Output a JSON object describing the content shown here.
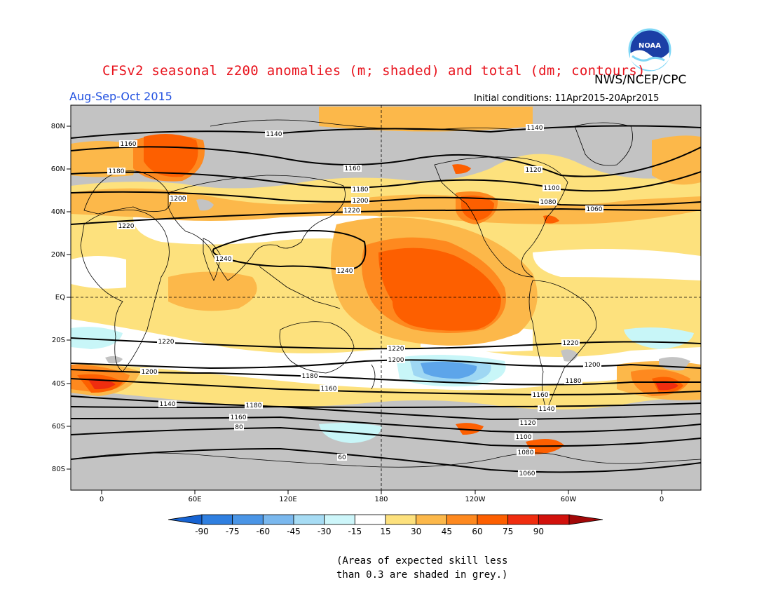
{
  "header": {
    "title": "CFSv2 seasonal z200 anomalies (m; shaded) and total (dm; contours)",
    "agency": "NWS/NCEP/CPC",
    "season": "Aug-Sep-Oct 2015",
    "initial_conditions": "Initial conditions: 11Apr2015-20Apr2015",
    "logo_text": "NOAA"
  },
  "map": {
    "lat_labels": [
      "80N",
      "60N",
      "40N",
      "20N",
      "EQ",
      "20S",
      "40S",
      "60S",
      "80S"
    ],
    "lon_labels": [
      "0",
      "60E",
      "120E",
      "180",
      "120W",
      "60W",
      "0"
    ],
    "colors": {
      "grey": "#c3c3c3",
      "white": "#ffffff",
      "y15": "#fde17d",
      "y30": "#fcb84a",
      "o45": "#fe891f",
      "o60": "#fd5f00",
      "r75": "#f02d0f",
      "lb15": "#c8f6f8",
      "lb30": "#9ed7f3",
      "b45": "#5da5ea"
    },
    "contour_labels": [
      "1140",
      "1160",
      "1180",
      "1200",
      "1220",
      "1240",
      "1240",
      "1220",
      "1200",
      "1180",
      "1160",
      "1140",
      "1120",
      "1100",
      "1080",
      "1060",
      "1140",
      "1160",
      "1180",
      "1200",
      "1220",
      "1220",
      "1200",
      "1180",
      "1160",
      "1140",
      "1120",
      "1100",
      "1080",
      "1060",
      "1220",
      "1200",
      "1180",
      "1160",
      "80",
      "60"
    ]
  },
  "colorbar": {
    "labels": [
      "-90",
      "-75",
      "-60",
      "-45",
      "-30",
      "-15",
      "15",
      "30",
      "45",
      "60",
      "75",
      "90"
    ],
    "colors": [
      "#1663d2",
      "#2f7fe0",
      "#4a95e6",
      "#7ab8ee",
      "#a7dcf4",
      "#cdf6fa",
      "#ffffff",
      "#fde17d",
      "#fcb84a",
      "#fe891f",
      "#fd5f00",
      "#f02d0f",
      "#d2110c",
      "#a20808"
    ]
  },
  "footer": {
    "skill_line1": "(Areas of expected skill less",
    "skill_line2": "than 0.3 are shaded in grey.)"
  }
}
